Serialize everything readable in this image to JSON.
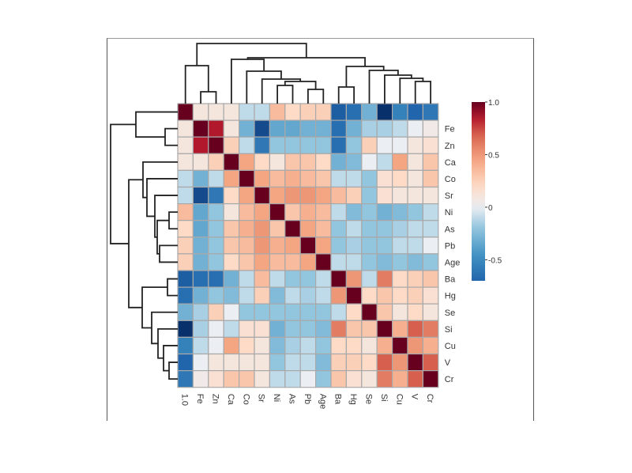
{
  "chart_data": {
    "type": "heatmap",
    "labels": [
      "1.0",
      "Fe",
      "Zn",
      "Ca",
      "Co",
      "Sr",
      "Ni",
      "As",
      "Pb",
      "Age",
      "Ba",
      "Hg",
      "Se",
      "Si",
      "Cu",
      "V",
      "Cr"
    ],
    "matrix": [
      [
        1.0,
        0.1,
        0.1,
        0.1,
        -0.1,
        -0.1,
        0.35,
        0.2,
        0.25,
        0.25,
        -0.75,
        -0.65,
        -0.3,
        -1.0,
        -0.55,
        -0.7,
        -0.6
      ],
      [
        0.1,
        1.0,
        0.85,
        0.1,
        -0.3,
        -0.85,
        -0.35,
        -0.35,
        -0.3,
        -0.3,
        -0.65,
        -0.3,
        -0.15,
        -0.15,
        -0.1,
        0.0,
        0.05
      ],
      [
        0.1,
        0.85,
        1.0,
        0.25,
        -0.1,
        -0.6,
        -0.2,
        -0.2,
        -0.2,
        -0.2,
        -0.65,
        -0.2,
        0.25,
        0.0,
        0.0,
        0.1,
        0.15
      ],
      [
        0.1,
        0.1,
        0.25,
        1.0,
        0.45,
        0.2,
        0.1,
        0.3,
        0.3,
        0.2,
        -0.3,
        -0.25,
        0.0,
        -0.1,
        0.45,
        0.1,
        0.3
      ],
      [
        -0.1,
        -0.3,
        -0.1,
        0.45,
        1.0,
        0.45,
        0.35,
        0.4,
        0.35,
        0.3,
        -0.1,
        -0.1,
        -0.2,
        0.15,
        0.2,
        0.1,
        0.3
      ],
      [
        -0.1,
        -0.85,
        -0.6,
        0.2,
        0.45,
        1.0,
        0.45,
        0.5,
        0.5,
        0.45,
        0.35,
        0.25,
        -0.2,
        0.15,
        0.1,
        0.1,
        0.1
      ],
      [
        0.35,
        -0.35,
        -0.2,
        0.1,
        0.35,
        0.45,
        1.0,
        0.3,
        0.4,
        0.35,
        -0.1,
        -0.25,
        -0.2,
        -0.3,
        -0.25,
        -0.2,
        -0.1
      ],
      [
        0.2,
        -0.35,
        -0.2,
        0.3,
        0.4,
        0.5,
        0.3,
        1.0,
        0.45,
        0.35,
        -0.2,
        -0.1,
        -0.2,
        -0.2,
        -0.15,
        -0.1,
        -0.1
      ],
      [
        0.25,
        -0.3,
        -0.2,
        0.3,
        0.35,
        0.5,
        0.4,
        0.45,
        1.0,
        0.45,
        -0.2,
        -0.15,
        -0.2,
        -0.2,
        -0.1,
        -0.1,
        0.0
      ],
      [
        0.25,
        -0.3,
        -0.2,
        0.2,
        0.3,
        0.45,
        0.35,
        0.35,
        0.45,
        1.0,
        -0.1,
        -0.1,
        -0.2,
        -0.25,
        -0.2,
        -0.25,
        -0.2
      ],
      [
        -0.75,
        -0.65,
        -0.65,
        -0.3,
        -0.1,
        0.35,
        -0.1,
        -0.2,
        -0.2,
        -0.1,
        1.0,
        0.5,
        -0.1,
        0.6,
        0.2,
        0.25,
        0.3
      ],
      [
        -0.65,
        -0.3,
        -0.2,
        -0.25,
        -0.1,
        0.25,
        -0.25,
        -0.1,
        -0.15,
        -0.1,
        0.5,
        1.0,
        0.2,
        0.3,
        0.2,
        0.25,
        0.15
      ],
      [
        -0.3,
        -0.15,
        0.25,
        0.0,
        -0.2,
        -0.2,
        -0.2,
        -0.2,
        -0.2,
        -0.2,
        -0.1,
        0.2,
        1.0,
        0.3,
        0.1,
        0.2,
        0.1
      ],
      [
        -1.0,
        -0.15,
        0.0,
        -0.1,
        0.15,
        0.15,
        -0.3,
        -0.2,
        -0.2,
        -0.25,
        0.6,
        0.3,
        0.3,
        1.0,
        0.4,
        0.7,
        0.6
      ],
      [
        -0.55,
        -0.1,
        0.0,
        0.45,
        0.2,
        0.1,
        -0.25,
        -0.15,
        -0.1,
        -0.2,
        0.2,
        0.2,
        0.1,
        0.4,
        1.0,
        0.5,
        0.4
      ],
      [
        -0.7,
        0.0,
        0.1,
        0.1,
        0.1,
        0.1,
        -0.2,
        -0.1,
        -0.1,
        -0.25,
        0.25,
        0.25,
        0.2,
        0.7,
        0.5,
        1.0,
        0.7
      ],
      [
        -0.6,
        0.05,
        0.15,
        0.3,
        0.3,
        0.1,
        -0.1,
        -0.1,
        0.0,
        -0.2,
        0.3,
        0.15,
        0.1,
        0.6,
        0.4,
        0.7,
        1.0
      ]
    ],
    "color_scale": {
      "min": -0.7,
      "max": 1.0,
      "colormap": "RdBu_r",
      "low_color": "#08306b",
      "mid_color": "#f7f7f7",
      "high_color": "#67001f"
    },
    "colorbar_ticks": [
      "1.0",
      "0.5",
      "0",
      "-0.5"
    ],
    "colorbar_tick_values": [
      1.0,
      0.5,
      0.0,
      -0.5
    ],
    "dendrogram": "hierarchical clustering, rows and columns"
  }
}
